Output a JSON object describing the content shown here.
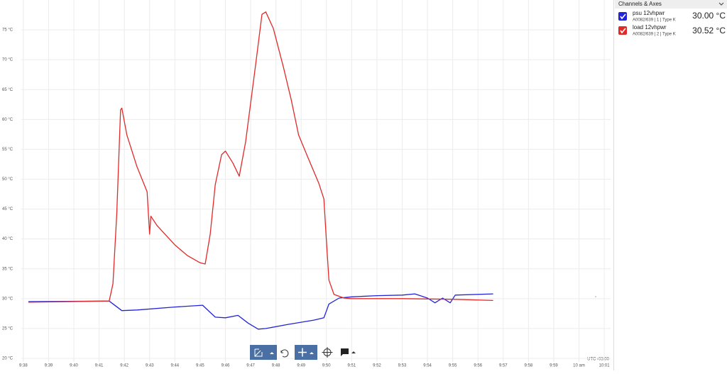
{
  "chart_data": {
    "type": "line",
    "xlim": [
      577.92,
      601.25
    ],
    "xticks": [
      {
        "value": 578,
        "label": "9:38"
      },
      {
        "value": 579,
        "label": "9:39"
      },
      {
        "value": 580,
        "label": "9:40"
      },
      {
        "value": 581,
        "label": "9:41"
      },
      {
        "value": 582,
        "label": "9:42"
      },
      {
        "value": 583,
        "label": "9:43"
      },
      {
        "value": 584,
        "label": "9:44"
      },
      {
        "value": 585,
        "label": "9:45"
      },
      {
        "value": 586,
        "label": "9:46"
      },
      {
        "value": 587,
        "label": "9:47"
      },
      {
        "value": 588,
        "label": "9:48"
      },
      {
        "value": 589,
        "label": "9:49"
      },
      {
        "value": 590,
        "label": "9:50"
      },
      {
        "value": 591,
        "label": "9:51"
      },
      {
        "value": 592,
        "label": "9:52"
      },
      {
        "value": 593,
        "label": "9:53"
      },
      {
        "value": 594,
        "label": "9:54"
      },
      {
        "value": 595,
        "label": "9:55"
      },
      {
        "value": 596,
        "label": "9:56"
      },
      {
        "value": 597,
        "label": "9:57"
      },
      {
        "value": 598,
        "label": "9:58"
      },
      {
        "value": 599,
        "label": "9:59"
      },
      {
        "value": 600,
        "label": "10 am"
      },
      {
        "value": 601,
        "label": "10:01"
      }
    ],
    "ylim": [
      20,
      80
    ],
    "yticks": [
      {
        "value": 20,
        "label": "20 °C"
      },
      {
        "value": 25,
        "label": "25 °C"
      },
      {
        "value": 30,
        "label": "30 °C"
      },
      {
        "value": 35,
        "label": "35 °C"
      },
      {
        "value": 40,
        "label": "40 °C"
      },
      {
        "value": 45,
        "label": "45 °C"
      },
      {
        "value": 50,
        "label": "50 °C"
      },
      {
        "value": 55,
        "label": "55 °C"
      },
      {
        "value": 60,
        "label": "60 °C"
      },
      {
        "value": 65,
        "label": "65 °C"
      },
      {
        "value": 70,
        "label": "70 °C"
      },
      {
        "value": 75,
        "label": "75 °C"
      }
    ],
    "grid": true,
    "timezone": "UTC+03:00",
    "series": [
      {
        "name": "psu 12vhpwr",
        "color": "#2323d8",
        "x": [
          578.2,
          581.4,
          581.9,
          582.5,
          584,
          585.1,
          585.6,
          586,
          586.5,
          586.9,
          587.3,
          587.6,
          588.5,
          589.5,
          589.9,
          590.1,
          590.5,
          591,
          592,
          593,
          593.5,
          594,
          594.3,
          594.6,
          594.9,
          595.1,
          596.6
        ],
        "values": [
          29.5,
          29.6,
          28.0,
          28.1,
          28.6,
          28.9,
          26.9,
          26.8,
          27.2,
          25.9,
          24.9,
          25.0,
          25.7,
          26.4,
          26.8,
          29.1,
          30.1,
          30.3,
          30.5,
          30.6,
          30.8,
          30.1,
          29.3,
          30.1,
          29.3,
          30.6,
          30.8
        ]
      },
      {
        "name": "load 12vhpwr",
        "color": "#e02a2a",
        "x": [
          578.2,
          581.4,
          581.55,
          581.7,
          581.85,
          581.9,
          582.1,
          582.5,
          582.9,
          583.0,
          583.05,
          583.3,
          584,
          584.5,
          585,
          585.2,
          585.4,
          585.6,
          585.85,
          586,
          586.3,
          586.55,
          586.8,
          587.2,
          587.45,
          587.6,
          587.9,
          588.3,
          588.6,
          588.9,
          589.3,
          589.7,
          589.9,
          590.0,
          590.1,
          590.3,
          590.7,
          591,
          593,
          595,
          596.6
        ],
        "values": [
          29.4,
          29.6,
          32.5,
          44.3,
          61.6,
          61.9,
          57.4,
          52.1,
          47.9,
          40.8,
          43.8,
          42.2,
          39.0,
          37.2,
          36.0,
          35.8,
          40.8,
          49.1,
          54.1,
          54.7,
          52.7,
          50.5,
          56.2,
          69.3,
          77.6,
          78.0,
          75.2,
          68.7,
          63.4,
          57.4,
          53.3,
          49.3,
          46.7,
          39.6,
          33.1,
          30.7,
          30.1,
          30.0,
          30.0,
          29.9,
          29.7
        ]
      }
    ]
  },
  "panel": {
    "title": "Channels & Axes",
    "channels": [
      {
        "info": "A0082/639 | 1 | Type K",
        "reading": "30.00 °C"
      },
      {
        "info": "A0082/639 | 2 | Type K",
        "reading": "30.52 °C"
      }
    ]
  }
}
